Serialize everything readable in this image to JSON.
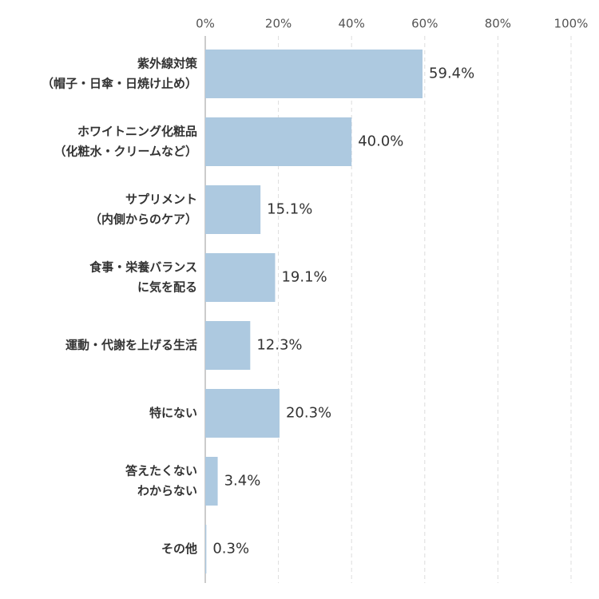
{
  "chart_data": {
    "type": "bar",
    "orientation": "horizontal",
    "categories": [
      [
        "紫外線対策",
        "（帽子・日傘・日焼け止め）"
      ],
      [
        "ホワイトニング化粧品",
        "（化粧水・クリームなど）"
      ],
      [
        "サプリメント",
        "（内側からのケア）"
      ],
      [
        "食事・栄養バランス",
        "に気を配る"
      ],
      [
        "運動・代謝を上げる生活"
      ],
      [
        "特にない"
      ],
      [
        "答えたくない",
        "わからない"
      ],
      [
        "その他"
      ]
    ],
    "values": [
      59.4,
      40.0,
      15.1,
      19.1,
      12.3,
      20.3,
      3.4,
      0.3
    ],
    "value_labels": [
      "59.4%",
      "40.0%",
      "15.1%",
      "19.1%",
      "12.3%",
      "20.3%",
      "3.4%",
      "0.3%"
    ],
    "color": "#adc9e0",
    "xlim": [
      0,
      100
    ],
    "xticks": [
      {
        "value": 0,
        "label": "0%"
      },
      {
        "value": 20,
        "label": "20%"
      },
      {
        "value": 40,
        "label": "40%"
      },
      {
        "value": 60,
        "label": "60%"
      },
      {
        "value": 80,
        "label": "80%"
      },
      {
        "value": 100,
        "label": "100%"
      }
    ],
    "grid": true
  }
}
